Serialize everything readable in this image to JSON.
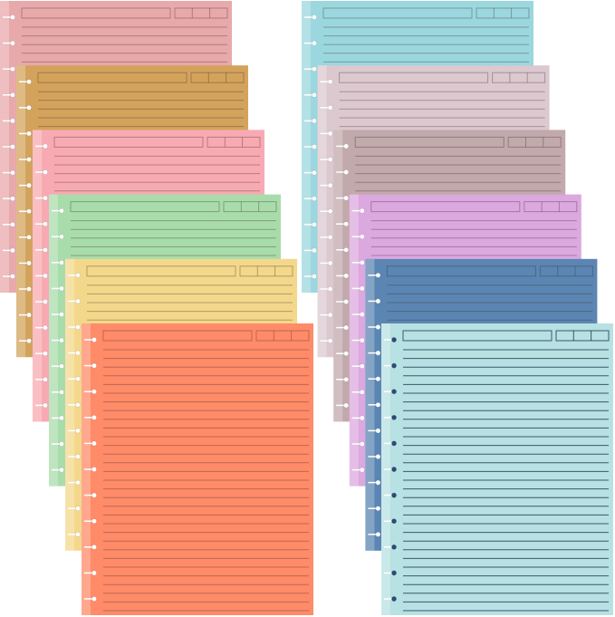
{
  "sheets_left": [
    {
      "color": "#e8a9ab"
    },
    {
      "color": "#d3a35c"
    },
    {
      "color": "#f8aab2"
    },
    {
      "color": "#a9dcab"
    },
    {
      "color": "#f3d88b"
    },
    {
      "color": "#ff8b69"
    }
  ],
  "sheets_right": [
    {
      "color": "#9bd7de"
    },
    {
      "color": "#dcc8cf"
    },
    {
      "color": "#c2a9ab"
    },
    {
      "color": "#dca8e0"
    },
    {
      "color": "#5b86b3"
    },
    {
      "color": "#b7e1e2"
    }
  ]
}
